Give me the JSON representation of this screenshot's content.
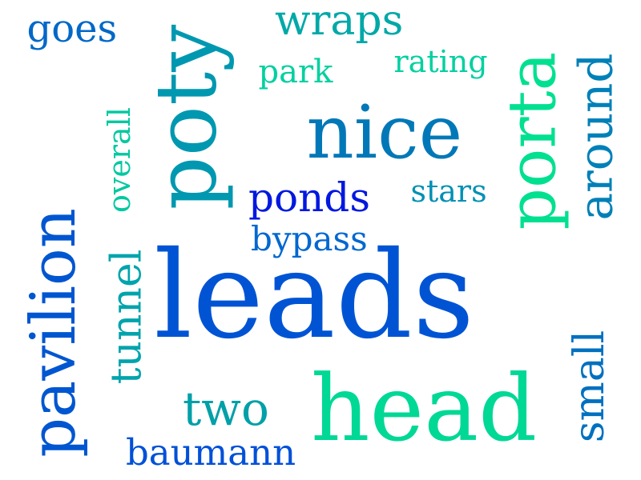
{
  "words": [
    {
      "text": "leads",
      "color": "#0054d4",
      "orientation": "horizontal"
    },
    {
      "text": "head",
      "color": "#00d895",
      "orientation": "horizontal"
    },
    {
      "text": "nice",
      "color": "#0078b8",
      "orientation": "horizontal"
    },
    {
      "text": "pavilion",
      "color": "#0056d0",
      "orientation": "vertical"
    },
    {
      "text": "poty",
      "color": "#0098b0",
      "orientation": "vertical"
    },
    {
      "text": "porta",
      "color": "#00e090",
      "orientation": "vertical"
    },
    {
      "text": "wraps",
      "color": "#00a8a8",
      "orientation": "horizontal"
    },
    {
      "text": "ponds",
      "color": "#0018e0",
      "orientation": "horizontal"
    },
    {
      "text": "two",
      "color": "#00a0a8",
      "orientation": "horizontal"
    },
    {
      "text": "around",
      "color": "#0080b8",
      "orientation": "vertical"
    },
    {
      "text": "small",
      "color": "#0070c0",
      "orientation": "vertical"
    },
    {
      "text": "goes",
      "color": "#0068c8",
      "orientation": "horizontal"
    },
    {
      "text": "tunnel",
      "color": "#00a4ac",
      "orientation": "vertical"
    },
    {
      "text": "baumann",
      "color": "#0050d8",
      "orientation": "horizontal"
    },
    {
      "text": "bypass",
      "color": "#0068d0",
      "orientation": "horizontal"
    },
    {
      "text": "stars",
      "color": "#0090b4",
      "orientation": "horizontal"
    },
    {
      "text": "rating",
      "color": "#00d0a0",
      "orientation": "horizontal"
    },
    {
      "text": "park",
      "color": "#00d0a0",
      "orientation": "horizontal"
    },
    {
      "text": "overall",
      "color": "#00c8a0",
      "orientation": "vertical"
    }
  ]
}
